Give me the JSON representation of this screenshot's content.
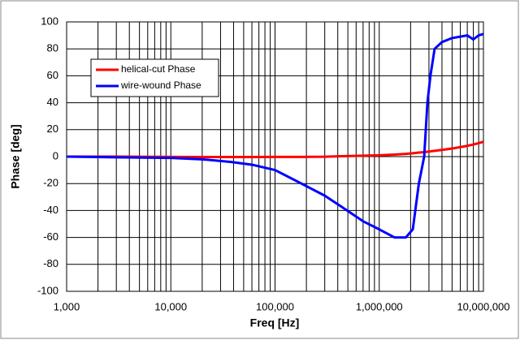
{
  "chart_data": {
    "type": "line",
    "x_label": "Freq [Hz]",
    "y_label": "Phase [deg]",
    "x_log": true,
    "grid": true,
    "x_minor_grid": true,
    "legend_position": "upper left",
    "x": [
      1000,
      3000,
      10000,
      20000,
      38000,
      60000,
      100000,
      190000,
      300000,
      430000,
      700000,
      1000000,
      1400000,
      1800000,
      2100000,
      2400000,
      2700000,
      2900000,
      3100000,
      3400000,
      4000000,
      5000000,
      7000000,
      8000000,
      9000000,
      10000000
    ],
    "series": [
      {
        "name": "helical-cut Phase",
        "color": "#ff0000",
        "values": [
          0,
          0,
          -0.2,
          -0.3,
          -0.3,
          -0.3,
          -0.2,
          -0.2,
          -0.1,
          0.3,
          0.7,
          1,
          1.5,
          2,
          2.5,
          3,
          3.3,
          3.6,
          3.9,
          4.3,
          5,
          6,
          8,
          9,
          10,
          11
        ]
      },
      {
        "name": "wire-wound Phase",
        "color": "#0000ff",
        "values": [
          0,
          -0.5,
          -1,
          -2,
          -4,
          -6,
          -10,
          -21,
          -29,
          -37,
          -48,
          -54,
          -60,
          -60,
          -54,
          -20,
          0,
          40,
          60,
          80,
          85,
          88,
          90,
          87,
          90,
          91
        ]
      }
    ],
    "xlim": [
      1000,
      10000000
    ],
    "xticks": [
      {
        "value": 1000,
        "label": "1,000"
      },
      {
        "value": 10000,
        "label": "10,000"
      },
      {
        "value": 100000,
        "label": "100,000"
      },
      {
        "value": 1000000,
        "label": "1,000,000"
      },
      {
        "value": 10000000,
        "label": "10,000,000"
      }
    ],
    "ylim": [
      -100,
      100
    ],
    "yticks": [
      -100,
      -80,
      -60,
      -40,
      -20,
      0,
      20,
      40,
      60,
      80,
      100
    ]
  }
}
